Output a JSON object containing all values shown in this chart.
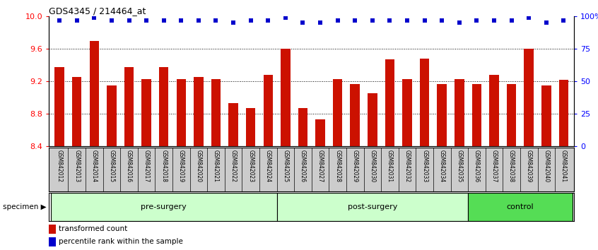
{
  "title": "GDS4345 / 214464_at",
  "categories": [
    "GSM842012",
    "GSM842013",
    "GSM842014",
    "GSM842015",
    "GSM842016",
    "GSM842017",
    "GSM842018",
    "GSM842019",
    "GSM842020",
    "GSM842021",
    "GSM842022",
    "GSM842023",
    "GSM842024",
    "GSM842025",
    "GSM842026",
    "GSM842027",
    "GSM842028",
    "GSM842029",
    "GSM842030",
    "GSM842031",
    "GSM842032",
    "GSM842033",
    "GSM842034",
    "GSM842035",
    "GSM842036",
    "GSM842037",
    "GSM842038",
    "GSM842039",
    "GSM842040",
    "GSM842041"
  ],
  "bar_values": [
    9.37,
    9.25,
    9.7,
    9.15,
    9.37,
    9.23,
    9.37,
    9.23,
    9.25,
    9.23,
    8.93,
    8.87,
    9.28,
    9.6,
    8.87,
    8.73,
    9.23,
    9.17,
    9.05,
    9.47,
    9.23,
    9.48,
    9.17,
    9.23,
    9.17,
    9.28,
    9.17,
    9.6,
    9.15,
    9.22
  ],
  "percentile_values": [
    97,
    97,
    99,
    97,
    97,
    97,
    97,
    97,
    97,
    97,
    95,
    97,
    97,
    99,
    95,
    95,
    97,
    97,
    97,
    97,
    97,
    97,
    97,
    95,
    97,
    97,
    97,
    99,
    95,
    97
  ],
  "groups": [
    {
      "label": "pre-surgery",
      "start": 0,
      "end": 13,
      "color": "#CCFFCC"
    },
    {
      "label": "post-surgery",
      "start": 13,
      "end": 24,
      "color": "#CCFFCC"
    },
    {
      "label": "control",
      "start": 24,
      "end": 30,
      "color": "#55DD55"
    }
  ],
  "bar_color": "#CC1100",
  "dot_color": "#0000CC",
  "ylim_left": [
    8.4,
    10.0
  ],
  "ylim_right": [
    0,
    100
  ],
  "yticks_left": [
    8.4,
    8.8,
    9.2,
    9.6,
    10.0
  ],
  "yticks_right": [
    0,
    25,
    50,
    75,
    100
  ],
  "ytick_labels_right": [
    "0",
    "25",
    "50",
    "75",
    "100%"
  ],
  "grid_values": [
    8.8,
    9.2,
    9.6
  ],
  "background_color": "#FFFFFF",
  "specimen_label": "specimen",
  "legend_items": [
    {
      "label": "transformed count",
      "color": "#CC1100"
    },
    {
      "label": "percentile rank within the sample",
      "color": "#0000CC"
    }
  ]
}
